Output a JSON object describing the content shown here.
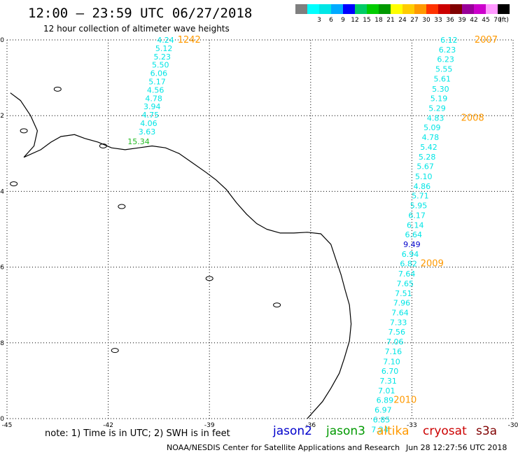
{
  "header": {
    "title": "12:00 – 23:59 UTC 06/27/2018",
    "subtitle": "12 hour collection of altimeter wave heights"
  },
  "legend": {
    "unit": "(ft)",
    "swatches": [
      {
        "color": "#7f7f7f",
        "label": ""
      },
      {
        "color": "#00ffff",
        "label": "3"
      },
      {
        "color": "#00e6e6",
        "label": "6"
      },
      {
        "color": "#00aaff",
        "label": "9"
      },
      {
        "color": "#0000ff",
        "label": "12"
      },
      {
        "color": "#00cc66",
        "label": "15"
      },
      {
        "color": "#00cc00",
        "label": "18"
      },
      {
        "color": "#009900",
        "label": "21"
      },
      {
        "color": "#ffff00",
        "label": "24"
      },
      {
        "color": "#ffcc00",
        "label": "27"
      },
      {
        "color": "#ff9900",
        "label": "30"
      },
      {
        "color": "#ff3300",
        "label": "33"
      },
      {
        "color": "#cc0000",
        "label": "36"
      },
      {
        "color": "#800000",
        "label": "39"
      },
      {
        "color": "#990099",
        "label": "42"
      },
      {
        "color": "#cc00cc",
        "label": "45"
      },
      {
        "color": "#ff99ff",
        "label": "70"
      },
      {
        "color": "#000000",
        "label": ""
      }
    ]
  },
  "axes": {
    "lon_ticks": [
      -45,
      -42,
      -39,
      -36,
      -33,
      -30
    ],
    "lat_ticks": [
      0,
      -2,
      -4,
      -6,
      -8,
      -10
    ],
    "lon_range": [
      -45,
      -30
    ],
    "lat_range": [
      -10,
      0
    ],
    "grid": "dotted"
  },
  "tracks": [
    {
      "name": "track-west",
      "color": "#00e5e5",
      "points": [
        {
          "lon": -40.3,
          "lat": 0.0,
          "value": "4.24"
        },
        {
          "lon": -40.35,
          "lat": -0.22,
          "value": "5.12"
        },
        {
          "lon": -40.4,
          "lat": -0.44,
          "value": "5.23"
        },
        {
          "lon": -40.45,
          "lat": -0.66,
          "value": "5.50"
        },
        {
          "lon": -40.5,
          "lat": -0.88,
          "value": "6.06"
        },
        {
          "lon": -40.55,
          "lat": -1.1,
          "value": "5.17"
        },
        {
          "lon": -40.6,
          "lat": -1.32,
          "value": "4.56"
        },
        {
          "lon": -40.65,
          "lat": -1.54,
          "value": "4.78"
        },
        {
          "lon": -40.7,
          "lat": -1.76,
          "value": "3.94"
        },
        {
          "lon": -40.75,
          "lat": -1.98,
          "value": "4.75"
        },
        {
          "lon": -40.8,
          "lat": -2.2,
          "value": "4.06"
        },
        {
          "lon": -40.85,
          "lat": -2.42,
          "value": "3.63"
        },
        {
          "lon": -41.1,
          "lat": -2.68,
          "value": "15.34",
          "color": "#22bb22"
        }
      ]
    },
    {
      "name": "track-east",
      "color": "#00e5e5",
      "points": [
        {
          "lon": -31.9,
          "lat": 0.0,
          "value": "6.12"
        },
        {
          "lon": -31.95,
          "lat": -0.26,
          "value": "6.23"
        },
        {
          "lon": -32.0,
          "lat": -0.51,
          "value": "6.23"
        },
        {
          "lon": -32.05,
          "lat": -0.77,
          "value": "5.55"
        },
        {
          "lon": -32.1,
          "lat": -1.03,
          "value": "5.61"
        },
        {
          "lon": -32.15,
          "lat": -1.29,
          "value": "5.30"
        },
        {
          "lon": -32.2,
          "lat": -1.54,
          "value": "5.19"
        },
        {
          "lon": -32.25,
          "lat": -1.8,
          "value": "5.29"
        },
        {
          "lon": -32.3,
          "lat": -2.06,
          "value": "4.83"
        },
        {
          "lon": -32.4,
          "lat": -2.31,
          "value": "5.09"
        },
        {
          "lon": -32.45,
          "lat": -2.57,
          "value": "4.78"
        },
        {
          "lon": -32.5,
          "lat": -2.83,
          "value": "5.42"
        },
        {
          "lon": -32.55,
          "lat": -3.09,
          "value": "5.28"
        },
        {
          "lon": -32.6,
          "lat": -3.34,
          "value": "5.67"
        },
        {
          "lon": -32.65,
          "lat": -3.6,
          "value": "5.10"
        },
        {
          "lon": -32.7,
          "lat": -3.86,
          "value": "4.86"
        },
        {
          "lon": -32.75,
          "lat": -4.11,
          "value": "5.71"
        },
        {
          "lon": -32.8,
          "lat": -4.37,
          "value": "5.95"
        },
        {
          "lon": -32.85,
          "lat": -4.63,
          "value": "6.17"
        },
        {
          "lon": -32.9,
          "lat": -4.89,
          "value": "6.14"
        },
        {
          "lon": -32.95,
          "lat": -5.14,
          "value": "6.64"
        },
        {
          "lon": -33.0,
          "lat": -5.4,
          "value": "9.49",
          "color": "#0000cc"
        },
        {
          "lon": -33.05,
          "lat": -5.66,
          "value": "6.94"
        },
        {
          "lon": -33.1,
          "lat": -5.91,
          "value": "6.82"
        },
        {
          "lon": -33.15,
          "lat": -6.17,
          "value": "7.64"
        },
        {
          "lon": -33.2,
          "lat": -6.43,
          "value": "7.65"
        },
        {
          "lon": -33.25,
          "lat": -6.69,
          "value": "7.51"
        },
        {
          "lon": -33.3,
          "lat": -6.94,
          "value": "7.96"
        },
        {
          "lon": -33.35,
          "lat": -7.2,
          "value": "7.64"
        },
        {
          "lon": -33.4,
          "lat": -7.46,
          "value": "7.33"
        },
        {
          "lon": -33.45,
          "lat": -7.71,
          "value": "7.56"
        },
        {
          "lon": -33.5,
          "lat": -7.97,
          "value": "7.06"
        },
        {
          "lon": -33.55,
          "lat": -8.23,
          "value": "7.16"
        },
        {
          "lon": -33.6,
          "lat": -8.49,
          "value": "7.10"
        },
        {
          "lon": -33.65,
          "lat": -8.74,
          "value": "6.70"
        },
        {
          "lon": -33.7,
          "lat": -9.0,
          "value": "7.31"
        },
        {
          "lon": -33.75,
          "lat": -9.26,
          "value": "7.01"
        },
        {
          "lon": -33.8,
          "lat": -9.51,
          "value": "6.89"
        },
        {
          "lon": -33.85,
          "lat": -9.77,
          "value": "6.97"
        },
        {
          "lon": -33.9,
          "lat": -10.03,
          "value": "6.85"
        },
        {
          "lon": -33.95,
          "lat": -10.29,
          "value": "7.24"
        }
      ]
    }
  ],
  "annotations": [
    {
      "text": "1242",
      "lon": -39.6,
      "lat": 0.0,
      "color": "#800000"
    },
    {
      "text": "2007",
      "lon": -30.8,
      "lat": 0.0,
      "color": "#ff9900"
    },
    {
      "text": "2008",
      "lon": -31.2,
      "lat": -2.06,
      "color": "#ff9900"
    },
    {
      "text": "2009",
      "lon": -32.4,
      "lat": -5.91,
      "color": "#ff9900"
    },
    {
      "text": "2010",
      "lon": -33.2,
      "lat": -9.51,
      "color": "#ff9900"
    }
  ],
  "coast": {
    "color": "#000000",
    "points": [
      [
        -44.9,
        -1.4
      ],
      [
        -44.6,
        -1.6
      ],
      [
        -44.3,
        -2.0
      ],
      [
        -44.1,
        -2.4
      ],
      [
        -44.2,
        -2.8
      ],
      [
        -44.5,
        -3.1
      ],
      [
        -44.0,
        -2.9
      ],
      [
        -43.7,
        -2.7
      ],
      [
        -43.4,
        -2.55
      ],
      [
        -43.0,
        -2.5
      ],
      [
        -42.7,
        -2.6
      ],
      [
        -42.3,
        -2.7
      ],
      [
        -41.9,
        -2.85
      ],
      [
        -41.5,
        -2.9
      ],
      [
        -41.1,
        -2.85
      ],
      [
        -40.7,
        -2.8
      ],
      [
        -40.3,
        -2.85
      ],
      [
        -39.9,
        -3.0
      ],
      [
        -39.5,
        -3.25
      ],
      [
        -39.1,
        -3.5
      ],
      [
        -38.8,
        -3.7
      ],
      [
        -38.5,
        -3.95
      ],
      [
        -38.2,
        -4.3
      ],
      [
        -37.9,
        -4.6
      ],
      [
        -37.6,
        -4.85
      ],
      [
        -37.3,
        -5.0
      ],
      [
        -36.9,
        -5.1
      ],
      [
        -36.5,
        -5.1
      ],
      [
        -36.1,
        -5.08
      ],
      [
        -35.7,
        -5.12
      ],
      [
        -35.4,
        -5.4
      ],
      [
        -35.25,
        -5.8
      ],
      [
        -35.1,
        -6.2
      ],
      [
        -34.98,
        -6.6
      ],
      [
        -34.85,
        -7.0
      ],
      [
        -34.8,
        -7.5
      ],
      [
        -34.85,
        -7.95
      ],
      [
        -35.0,
        -8.4
      ],
      [
        -35.15,
        -8.8
      ],
      [
        -35.4,
        -9.2
      ],
      [
        -35.65,
        -9.55
      ],
      [
        -35.9,
        -9.8
      ],
      [
        -36.1,
        -10.0
      ]
    ]
  },
  "islands": [
    {
      "lon": -43.5,
      "lat": -1.3
    },
    {
      "lon": -44.5,
      "lat": -2.4
    },
    {
      "lon": -44.8,
      "lat": -3.8
    },
    {
      "lon": -42.15,
      "lat": -2.8
    },
    {
      "lon": -41.6,
      "lat": -4.4
    },
    {
      "lon": -39.0,
      "lat": -6.3
    },
    {
      "lon": -37.0,
      "lat": -7.0
    },
    {
      "lon": -41.8,
      "lat": -8.2
    }
  ],
  "footer": {
    "note": "note: 1) Time is in UTC; 2) SWH is in feet",
    "satellites": [
      {
        "name": "jason2",
        "color": "#0000cc"
      },
      {
        "name": "jason3",
        "color": "#009900"
      },
      {
        "name": "altika",
        "color": "#ff9900"
      },
      {
        "name": "cryosat",
        "color": "#cc0000"
      },
      {
        "name": "s3a",
        "color": "#800000"
      }
    ],
    "credit": "NOAA/NESDIS Center for Satellite Applications and Research",
    "timestamp": "Jun 28 12:27:56 UTC 2018"
  }
}
